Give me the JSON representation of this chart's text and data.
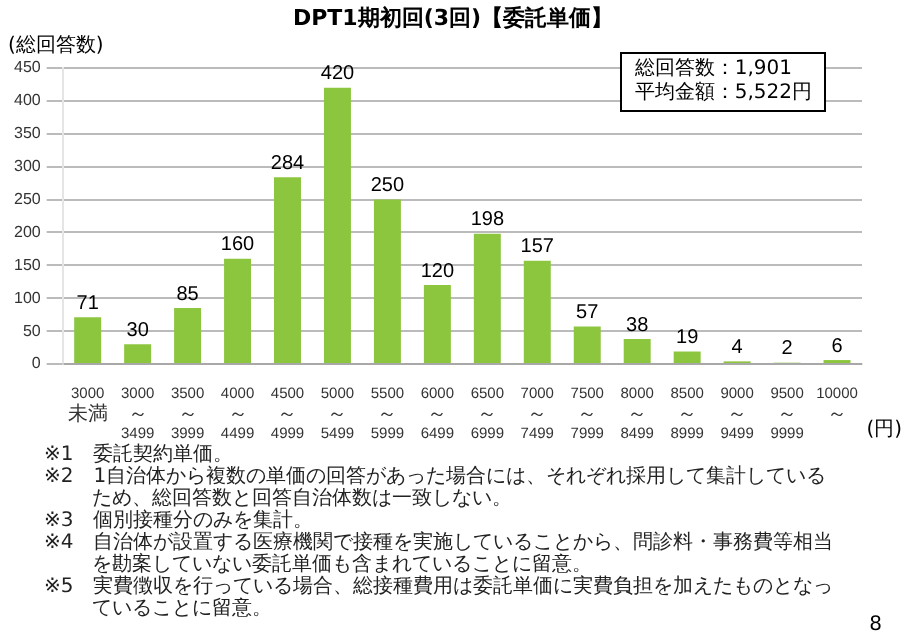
{
  "chart_data": {
    "type": "bar",
    "title": "DPT1期初回(3回)【委託単価】",
    "ylabel": "(総回答数)",
    "xlabel": "(円)",
    "categories": [
      "3000未満",
      "3000～3499",
      "3500～3999",
      "4000～4499",
      "4500～4999",
      "5000～5499",
      "5500～5999",
      "6000～6499",
      "6500～6999",
      "7000～7499",
      "7500～7999",
      "8000～8499",
      "8500～8999",
      "9000～9499",
      "9500～9999",
      "10000～"
    ],
    "values": [
      71,
      30,
      85,
      160,
      284,
      420,
      250,
      120,
      198,
      157,
      57,
      38,
      19,
      4,
      2,
      6
    ],
    "color": "#8cc63f",
    "ylim": [
      0,
      450
    ],
    "yticks": [
      0,
      50,
      100,
      150,
      200,
      250,
      300,
      350,
      400,
      450
    ],
    "grid": "y",
    "data_labels": true,
    "annotations": [
      "総回答数：1,901",
      "平均金額：5,522円",
      "※1　委託契約単価。",
      "※2　1自治体から複数の単価の回答があった場合には、それぞれ採用して集計しているため、総回答数と回答自治体数は一致しない。",
      "※3　個別接種分のみを集計。",
      "※4　自治体が設置する医療機関で接種を実施していることから、問診料・事務費等相当を勘案していない委託単価も含まれていることに留意。",
      "※5　実費徴収を行っている場合、総接種費用は委託単価に実費負担を加えたものとなっていることに留意。",
      "8"
    ]
  }
}
